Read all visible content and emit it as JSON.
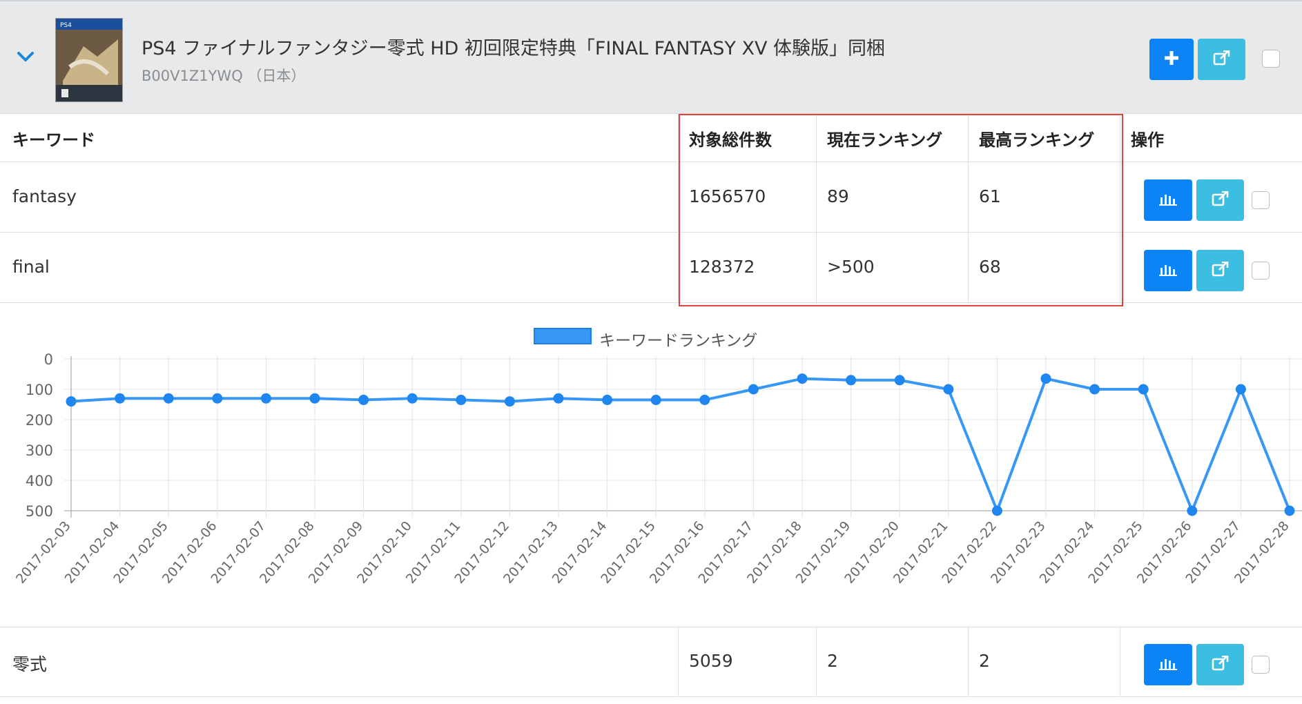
{
  "product": {
    "title": "PS4 ファイナルファンタジー零式 HD 初回限定特典「FINAL FANTASY XV 体験版」同梱",
    "subtitle": "B00V1Z1YWQ （日本）",
    "thumb_text": "PS4"
  },
  "table": {
    "headers": {
      "keyword": "キーワード",
      "total": "対象総件数",
      "current": "現在ランキング",
      "best": "最高ランキング",
      "actions": "操作"
    },
    "rows": [
      {
        "keyword": "fantasy",
        "total": "1656570",
        "current": "89",
        "best": "61"
      },
      {
        "keyword": "final",
        "total": "128372",
        "current": ">500",
        "best": "68"
      },
      {
        "keyword": "零式",
        "total": "5059",
        "current": "2",
        "best": "2"
      }
    ]
  },
  "colors": {
    "primary_button": "#0d84f5",
    "info_button": "#3cbde2",
    "highlight_border": "#e0433b",
    "line_series": "#3697f5"
  },
  "icons": {
    "collapse": "chevron-down-icon",
    "add": "plus-icon",
    "external": "external-link-icon",
    "chart": "bar-chart-icon"
  },
  "chart_data": {
    "type": "line",
    "title": "",
    "legend": "top",
    "grid": true,
    "y_reversed": true,
    "ylim": [
      0,
      500
    ],
    "yticks": [
      "0",
      "100",
      "200",
      "300",
      "400",
      "500"
    ],
    "x": [
      "2017-02-03",
      "2017-02-04",
      "2017-02-05",
      "2017-02-06",
      "2017-02-07",
      "2017-02-08",
      "2017-02-09",
      "2017-02-10",
      "2017-02-11",
      "2017-02-12",
      "2017-02-13",
      "2017-02-14",
      "2017-02-15",
      "2017-02-16",
      "2017-02-17",
      "2017-02-18",
      "2017-02-19",
      "2017-02-20",
      "2017-02-21",
      "2017-02-22",
      "2017-02-23",
      "2017-02-24",
      "2017-02-25",
      "2017-02-26",
      "2017-02-27",
      "2017-02-28"
    ],
    "series": [
      {
        "name": "キーワードランキング",
        "values": [
          140,
          130,
          130,
          130,
          130,
          130,
          135,
          130,
          135,
          140,
          130,
          135,
          135,
          135,
          100,
          65,
          70,
          70,
          100,
          500,
          65,
          100,
          100,
          500,
          100,
          500
        ]
      }
    ]
  }
}
